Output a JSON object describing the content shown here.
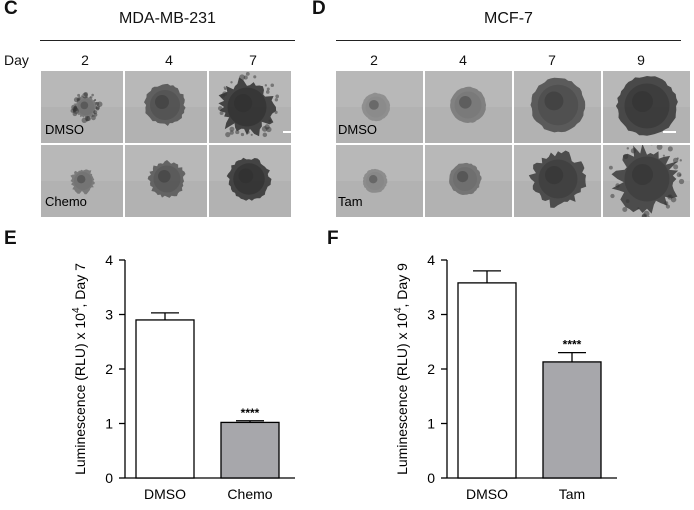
{
  "panel_c": {
    "letter": "C",
    "title": "MDA-MB-231",
    "day_caption": "Day",
    "days": [
      "2",
      "4",
      "7"
    ],
    "conditions": [
      "DMSO",
      "Chemo"
    ]
  },
  "panel_d": {
    "letter": "D",
    "title": "MCF-7",
    "days": [
      "2",
      "4",
      "7",
      "9"
    ],
    "conditions": [
      "DMSO",
      "Tam"
    ]
  },
  "chart_data": [
    {
      "panel": "E",
      "type": "bar",
      "categories": [
        "DMSO",
        "Chemo"
      ],
      "values": [
        2.9,
        1.02
      ],
      "errors": [
        0.13,
        0.03
      ],
      "bar_colors": [
        "#ffffff",
        "#a7a7ab"
      ],
      "significance": [
        "",
        "****"
      ],
      "ylabel_main": "Luminescence (RLU) x 10",
      "ylabel_sup": "4",
      "ylabel_tail": ", Day 7",
      "ylim": [
        0,
        4
      ],
      "yticks": [
        "0",
        "1",
        "2",
        "3",
        "4"
      ],
      "grid": false,
      "legend": "none"
    },
    {
      "panel": "F",
      "type": "bar",
      "categories": [
        "DMSO",
        "Tam"
      ],
      "values": [
        3.58,
        2.13
      ],
      "errors": [
        0.22,
        0.17
      ],
      "bar_colors": [
        "#ffffff",
        "#a7a7ab"
      ],
      "significance": [
        "",
        "****"
      ],
      "ylabel_main": "Luminescence (RLU) x 10",
      "ylabel_sup": "4",
      "ylabel_tail": ", Day 9",
      "ylim": [
        0,
        4
      ],
      "yticks": [
        "0",
        "1",
        "2",
        "3",
        "4"
      ],
      "grid": false,
      "legend": "none"
    }
  ]
}
